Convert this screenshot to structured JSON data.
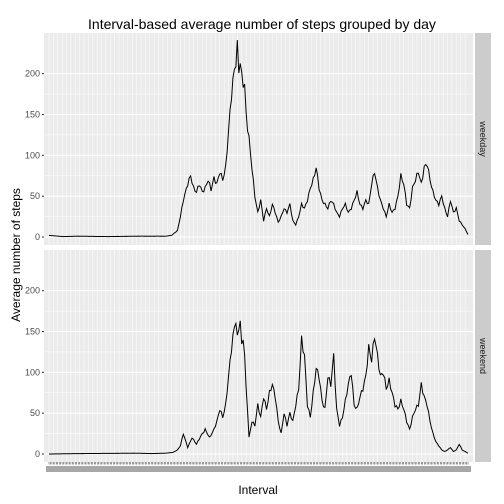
{
  "chart_data": {
    "type": "line",
    "title": "Interval-based average number of steps grouped by day",
    "xlabel": "Interval",
    "ylabel": "Average number of steps",
    "ylim": [
      0,
      240
    ],
    "yticks": [
      0,
      50,
      100,
      150,
      200
    ],
    "x_count": 288,
    "grid": true,
    "legend": "none",
    "colors": {
      "line": "#000000",
      "panel": "#ebebeb",
      "grid": "#ffffff",
      "strip": "#cccccc"
    },
    "panels": [
      {
        "label": "weekday",
        "keyframes": [
          [
            0,
            2
          ],
          [
            10,
            0.5
          ],
          [
            20,
            1
          ],
          [
            40,
            0.5
          ],
          [
            60,
            1
          ],
          [
            70,
            1
          ],
          [
            80,
            1
          ],
          [
            84,
            2
          ],
          [
            88,
            8
          ],
          [
            90,
            25
          ],
          [
            92,
            45
          ],
          [
            95,
            65
          ],
          [
            97,
            75
          ],
          [
            99,
            60
          ],
          [
            101,
            55
          ],
          [
            103,
            65
          ],
          [
            105,
            55
          ],
          [
            107,
            60
          ],
          [
            109,
            70
          ],
          [
            111,
            58
          ],
          [
            113,
            72
          ],
          [
            115,
            65
          ],
          [
            117,
            80
          ],
          [
            119,
            70
          ],
          [
            121,
            85
          ],
          [
            123,
            130
          ],
          [
            125,
            175
          ],
          [
            127,
            205
          ],
          [
            128,
            215
          ],
          [
            129,
            232
          ],
          [
            130,
            205
          ],
          [
            131,
            215
          ],
          [
            132,
            195
          ],
          [
            134,
            185
          ],
          [
            135,
            150
          ],
          [
            137,
            120
          ],
          [
            139,
            85
          ],
          [
            141,
            50
          ],
          [
            143,
            30
          ],
          [
            145,
            45
          ],
          [
            147,
            20
          ],
          [
            149,
            35
          ],
          [
            151,
            25
          ],
          [
            153,
            40
          ],
          [
            155,
            30
          ],
          [
            157,
            18
          ],
          [
            159,
            25
          ],
          [
            161,
            35
          ],
          [
            163,
            30
          ],
          [
            165,
            40
          ],
          [
            167,
            20
          ],
          [
            169,
            15
          ],
          [
            171,
            25
          ],
          [
            173,
            40
          ],
          [
            175,
            35
          ],
          [
            177,
            45
          ],
          [
            179,
            60
          ],
          [
            181,
            70
          ],
          [
            183,
            85
          ],
          [
            185,
            60
          ],
          [
            187,
            45
          ],
          [
            189,
            40
          ],
          [
            191,
            35
          ],
          [
            193,
            45
          ],
          [
            195,
            40
          ],
          [
            197,
            30
          ],
          [
            199,
            25
          ],
          [
            201,
            35
          ],
          [
            203,
            40
          ],
          [
            205,
            30
          ],
          [
            207,
            35
          ],
          [
            209,
            45
          ],
          [
            211,
            55
          ],
          [
            213,
            40
          ],
          [
            215,
            35
          ],
          [
            217,
            45
          ],
          [
            219,
            40
          ],
          [
            221,
            65
          ],
          [
            223,
            80
          ],
          [
            225,
            60
          ],
          [
            227,
            45
          ],
          [
            229,
            35
          ],
          [
            231,
            25
          ],
          [
            233,
            40
          ],
          [
            235,
            30
          ],
          [
            237,
            35
          ],
          [
            239,
            50
          ],
          [
            241,
            75
          ],
          [
            243,
            65
          ],
          [
            245,
            40
          ],
          [
            247,
            35
          ],
          [
            249,
            60
          ],
          [
            251,
            70
          ],
          [
            253,
            80
          ],
          [
            255,
            65
          ],
          [
            257,
            85
          ],
          [
            259,
            90
          ],
          [
            261,
            70
          ],
          [
            263,
            55
          ],
          [
            265,
            45
          ],
          [
            267,
            40
          ],
          [
            269,
            50
          ],
          [
            271,
            35
          ],
          [
            273,
            25
          ],
          [
            275,
            45
          ],
          [
            277,
            30
          ],
          [
            279,
            35
          ],
          [
            281,
            20
          ],
          [
            283,
            15
          ],
          [
            285,
            10
          ],
          [
            287,
            3
          ]
        ],
        "annotations": []
      },
      {
        "label": "weekend",
        "keyframes": [
          [
            0,
            0
          ],
          [
            20,
            0.5
          ],
          [
            60,
            1
          ],
          [
            70,
            0.5
          ],
          [
            80,
            1
          ],
          [
            85,
            2
          ],
          [
            88,
            5
          ],
          [
            90,
            10
          ],
          [
            92,
            25
          ],
          [
            95,
            8
          ],
          [
            98,
            20
          ],
          [
            101,
            12
          ],
          [
            104,
            22
          ],
          [
            107,
            30
          ],
          [
            110,
            20
          ],
          [
            113,
            30
          ],
          [
            115,
            40
          ],
          [
            117,
            55
          ],
          [
            119,
            45
          ],
          [
            121,
            60
          ],
          [
            123,
            95
          ],
          [
            125,
            130
          ],
          [
            127,
            155
          ],
          [
            128,
            165
          ],
          [
            129,
            140
          ],
          [
            130,
            155
          ],
          [
            131,
            165
          ],
          [
            132,
            130
          ],
          [
            133,
            145
          ],
          [
            134,
            120
          ],
          [
            135,
            80
          ],
          [
            136,
            55
          ],
          [
            137,
            20
          ],
          [
            139,
            40
          ],
          [
            141,
            35
          ],
          [
            143,
            60
          ],
          [
            145,
            45
          ],
          [
            147,
            70
          ],
          [
            149,
            55
          ],
          [
            151,
            75
          ],
          [
            153,
            85
          ],
          [
            155,
            70
          ],
          [
            157,
            40
          ],
          [
            159,
            25
          ],
          [
            161,
            50
          ],
          [
            163,
            35
          ],
          [
            165,
            50
          ],
          [
            167,
            40
          ],
          [
            169,
            60
          ],
          [
            171,
            80
          ],
          [
            173,
            140
          ],
          [
            175,
            120
          ],
          [
            177,
            60
          ],
          [
            179,
            45
          ],
          [
            181,
            75
          ],
          [
            183,
            105
          ],
          [
            185,
            95
          ],
          [
            187,
            65
          ],
          [
            189,
            55
          ],
          [
            191,
            95
          ],
          [
            193,
            85
          ],
          [
            195,
            120
          ],
          [
            197,
            55
          ],
          [
            199,
            35
          ],
          [
            201,
            45
          ],
          [
            203,
            65
          ],
          [
            205,
            85
          ],
          [
            207,
            100
          ],
          [
            209,
            60
          ],
          [
            211,
            55
          ],
          [
            213,
            70
          ],
          [
            215,
            80
          ],
          [
            217,
            95
          ],
          [
            219,
            130
          ],
          [
            221,
            115
          ],
          [
            223,
            145
          ],
          [
            225,
            120
          ],
          [
            227,
            95
          ],
          [
            229,
            100
          ],
          [
            231,
            80
          ],
          [
            233,
            90
          ],
          [
            235,
            75
          ],
          [
            237,
            60
          ],
          [
            239,
            55
          ],
          [
            241,
            65
          ],
          [
            243,
            55
          ],
          [
            245,
            40
          ],
          [
            247,
            30
          ],
          [
            249,
            45
          ],
          [
            251,
            55
          ],
          [
            253,
            60
          ],
          [
            255,
            85
          ],
          [
            257,
            70
          ],
          [
            259,
            60
          ],
          [
            261,
            40
          ],
          [
            263,
            25
          ],
          [
            265,
            15
          ],
          [
            267,
            10
          ],
          [
            269,
            5
          ],
          [
            271,
            3
          ],
          [
            273,
            5
          ],
          [
            275,
            8
          ],
          [
            277,
            3
          ],
          [
            279,
            5
          ],
          [
            281,
            12
          ],
          [
            283,
            5
          ],
          [
            285,
            3
          ],
          [
            287,
            1
          ]
        ],
        "annotations": []
      }
    ]
  }
}
